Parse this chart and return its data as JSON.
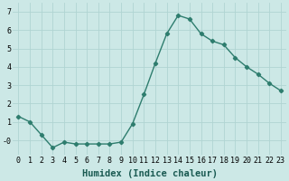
{
  "x": [
    0,
    1,
    2,
    3,
    4,
    5,
    6,
    7,
    8,
    9,
    10,
    11,
    12,
    13,
    14,
    15,
    16,
    17,
    18,
    19,
    20,
    21,
    22,
    23
  ],
  "y": [
    1.3,
    1.0,
    0.3,
    -0.4,
    -0.1,
    -0.2,
    -0.2,
    -0.2,
    -0.2,
    -0.1,
    0.9,
    2.5,
    4.2,
    5.8,
    6.8,
    6.6,
    5.8,
    5.4,
    5.2,
    4.5,
    4.0,
    3.6,
    3.1,
    2.7
  ],
  "line_color": "#2e7d6e",
  "marker": "D",
  "markersize": 2.2,
  "linewidth": 1.0,
  "bg_color": "#cce8e6",
  "grid_color": "#b0d4d2",
  "xlabel": "Humidex (Indice chaleur)",
  "xlabel_fontsize": 7.5,
  "tick_fontsize": 6.0,
  "ylim": [
    -0.8,
    7.5
  ],
  "xlim": [
    -0.5,
    23.5
  ],
  "yticks": [
    0,
    1,
    2,
    3,
    4,
    5,
    6,
    7
  ],
  "ytick_labels": [
    "-0",
    "1",
    "2",
    "3",
    "4",
    "5",
    "6",
    "7"
  ],
  "xticks": [
    0,
    1,
    2,
    3,
    4,
    5,
    6,
    7,
    8,
    9,
    10,
    11,
    12,
    13,
    14,
    15,
    16,
    17,
    18,
    19,
    20,
    21,
    22,
    23
  ]
}
